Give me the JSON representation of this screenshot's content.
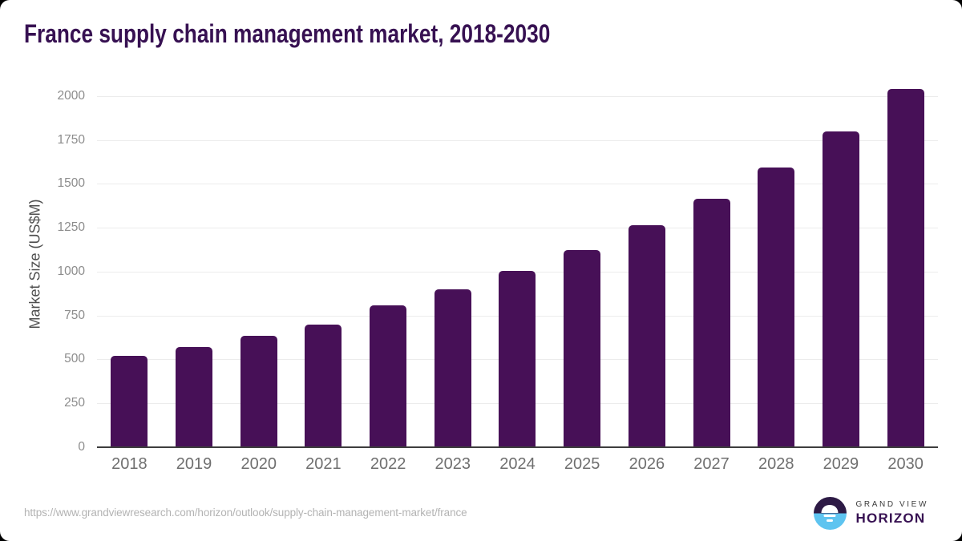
{
  "title": "France supply chain management market, 2018-2030",
  "colors": {
    "bar": "#471057",
    "title": "#371152",
    "gridline": "#ececec",
    "axis_line": "#3d3d3d",
    "tick_label": "#8c8c8c",
    "x_label": "#6f6f6f",
    "y_axis_label": "#4f4f4f",
    "footer_url": "#b3b3b3",
    "logo_dark": "#2d1a45",
    "logo_blue": "#5ec4f0",
    "logo_text_dark": "#3b3b3b",
    "logo_horizon": "#371152"
  },
  "chart_data": {
    "type": "bar",
    "title": "France supply chain management market, 2018-2030",
    "categories": [
      "2018",
      "2019",
      "2020",
      "2021",
      "2022",
      "2023",
      "2024",
      "2025",
      "2026",
      "2027",
      "2028",
      "2029",
      "2030"
    ],
    "values": [
      520,
      570,
      635,
      700,
      810,
      900,
      1005,
      1125,
      1265,
      1415,
      1595,
      1800,
      2040
    ],
    "xlabel": "",
    "ylabel": "Market Size (US$M)",
    "ylim": [
      0,
      2090
    ],
    "yticks": [
      0,
      250,
      500,
      750,
      1000,
      1250,
      1500,
      1750,
      2000
    ],
    "grid": true,
    "legend": false,
    "bar_color": "#471057"
  },
  "footer": {
    "source_url": "https://www.grandviewresearch.com/horizon/outlook/supply-chain-management-market/france",
    "logo": {
      "icon": "horizon-sun-icon",
      "brand_top": "GRAND VIEW",
      "brand_bottom": "HORIZON"
    }
  }
}
